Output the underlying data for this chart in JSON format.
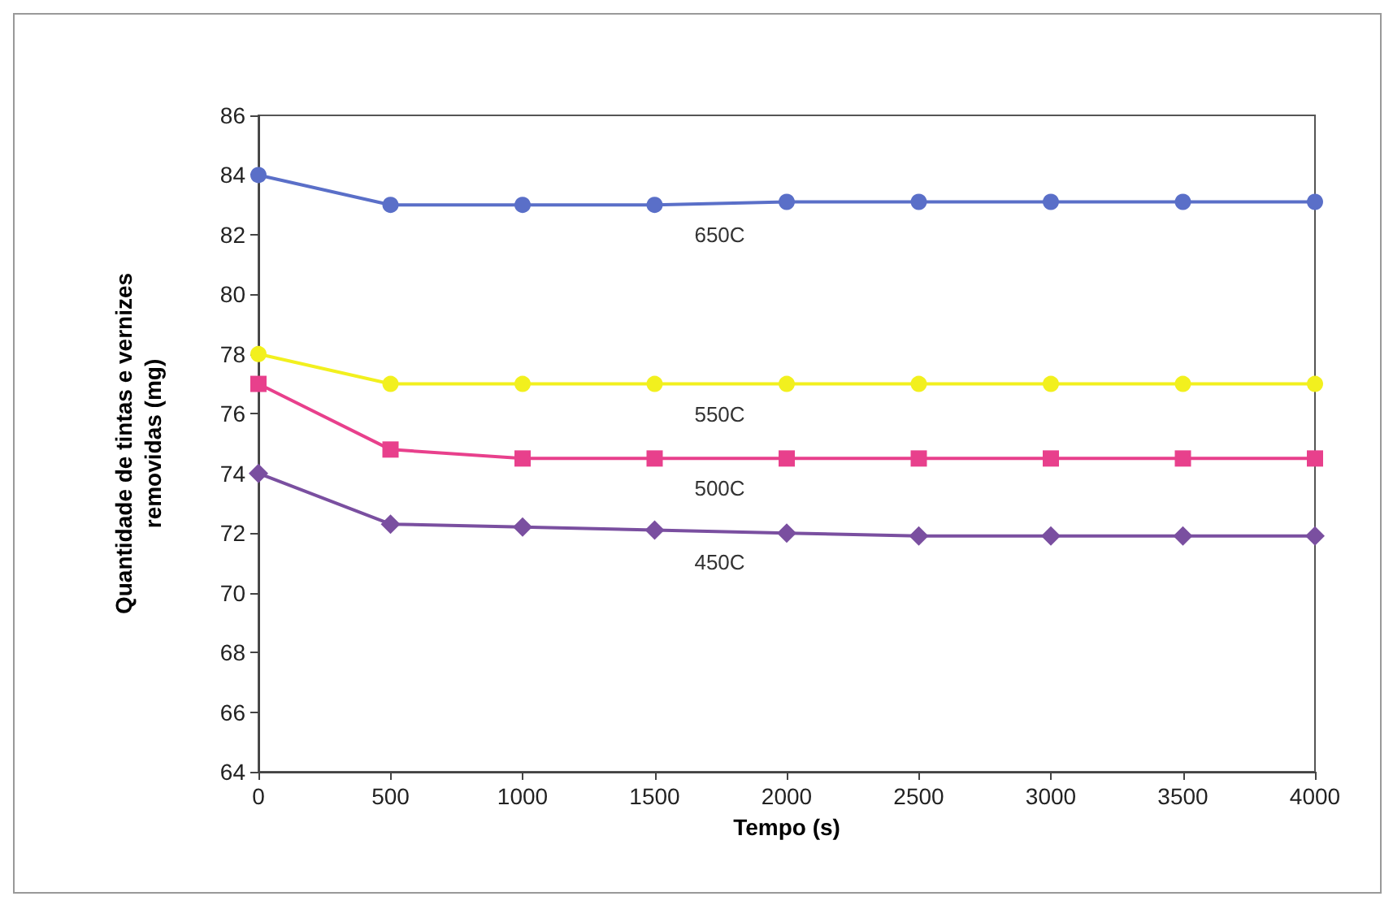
{
  "chart_data": {
    "type": "line",
    "xlabel": "Tempo (s)",
    "ylabel": "Quantidade de tintas e vernizes\nremovidas (mg)",
    "x": [
      0,
      500,
      1000,
      1500,
      2000,
      2500,
      3000,
      3500,
      4000
    ],
    "xlim": [
      0,
      4000
    ],
    "xticks": [
      0,
      500,
      1000,
      1500,
      2000,
      2500,
      3000,
      3500,
      4000
    ],
    "ylim": [
      64,
      86
    ],
    "yticks": [
      64,
      66,
      68,
      70,
      72,
      74,
      76,
      78,
      80,
      82,
      84,
      86
    ],
    "grid": false,
    "legend": false,
    "series": [
      {
        "name": "650C",
        "color": "#5a6fc8",
        "marker": "circle",
        "values": [
          84,
          83.0,
          83.0,
          83.0,
          83.1,
          83.1,
          83.1,
          83.1,
          83.1
        ]
      },
      {
        "name": "550C",
        "color": "#f2f01e",
        "marker": "circle",
        "values": [
          78,
          77.0,
          77.0,
          77.0,
          77.0,
          77.0,
          77.0,
          77.0,
          77.0
        ]
      },
      {
        "name": "500C",
        "color": "#e8408c",
        "marker": "square",
        "values": [
          77,
          74.8,
          74.5,
          74.5,
          74.5,
          74.5,
          74.5,
          74.5,
          74.5
        ]
      },
      {
        "name": "450C",
        "color": "#7a4fa0",
        "marker": "diamond",
        "values": [
          74,
          72.3,
          72.2,
          72.1,
          72.0,
          71.9,
          71.9,
          71.9,
          71.9
        ]
      }
    ]
  }
}
